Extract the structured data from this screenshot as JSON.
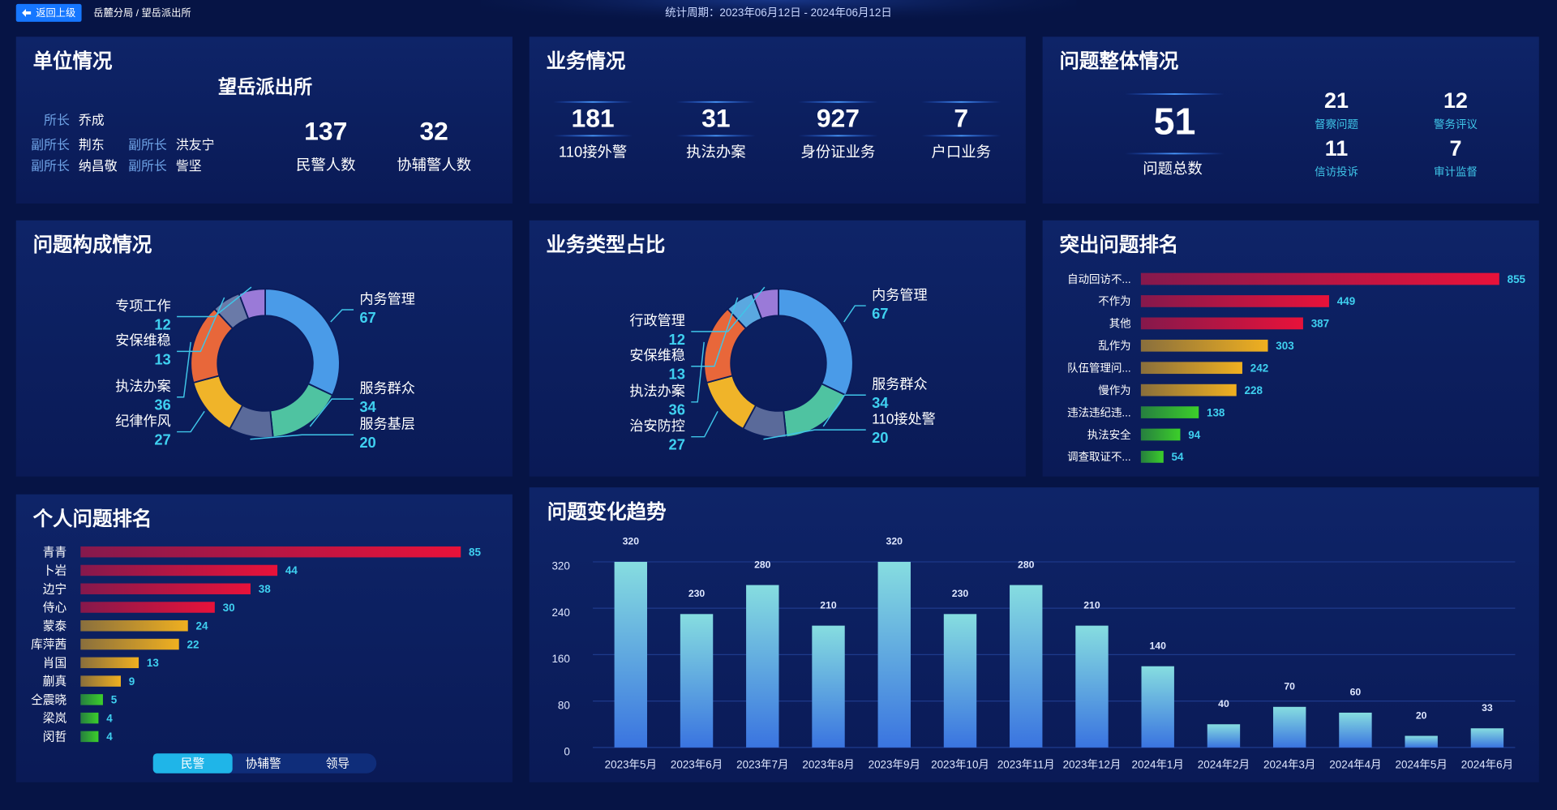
{
  "header": {
    "back_button": "返回上级",
    "breadcrumb": "岳麓分局 / 望岳派出所",
    "period": "统计周期：2023年06月12日 - 2024年06月12日"
  },
  "unit_panel": {
    "title": "单位情况",
    "name": "望岳派出所",
    "staff": [
      {
        "role": "所长",
        "name": "乔成"
      },
      {
        "role": "副所长",
        "name": "荆东"
      },
      {
        "role": "副所长",
        "name": "洪友宁"
      },
      {
        "role": "副所长",
        "name": "纳昌敬"
      },
      {
        "role": "副所长",
        "name": "訾坚"
      }
    ],
    "stats": [
      {
        "value": 137,
        "label": "民警人数"
      },
      {
        "value": 32,
        "label": "协辅警人数"
      }
    ]
  },
  "business_panel": {
    "title": "业务情况",
    "stats": [
      {
        "value": 181,
        "label": "110接外警"
      },
      {
        "value": 31,
        "label": "执法办案"
      },
      {
        "value": 927,
        "label": "身份证业务"
      },
      {
        "value": 7,
        "label": "户口业务"
      }
    ]
  },
  "issues_panel": {
    "title": "问题整体情况",
    "total": {
      "value": 51,
      "label": "问题总数"
    },
    "items": [
      {
        "value": 21,
        "label": "督察问题"
      },
      {
        "value": 12,
        "label": "警务评议"
      },
      {
        "value": 11,
        "label": "信访投诉"
      },
      {
        "value": 7,
        "label": "审计监督"
      }
    ]
  },
  "chart_data": [
    {
      "type": "donut",
      "title": "问题构成情况",
      "categories": [
        "内务管理",
        "服务群众",
        "服务基层",
        "纪律作风",
        "执法办案",
        "安保维稳",
        "专项工作"
      ],
      "values": [
        67,
        34,
        20,
        27,
        36,
        13,
        12
      ],
      "colors": [
        "#4a9be8",
        "#4fc3a1",
        "#5a6a9a",
        "#f0b429",
        "#e8673a",
        "#6a7aa8",
        "#9a7ad8"
      ]
    },
    {
      "type": "donut",
      "title": "业务类型占比",
      "categories": [
        "内务管理",
        "服务群众",
        "110接处警",
        "治安防控",
        "执法办案",
        "安保维稳",
        "行政管理"
      ],
      "values": [
        67,
        34,
        20,
        27,
        36,
        13,
        12
      ],
      "colors": [
        "#4a9be8",
        "#4fc3a1",
        "#5a6a9a",
        "#f0b429",
        "#e8673a",
        "#5aa8e0",
        "#9a7ad8"
      ]
    },
    {
      "type": "hbar",
      "title": "突出问题排名",
      "categories": [
        "自动回访不...",
        "不作为",
        "其他",
        "乱作为",
        "队伍管理问...",
        "慢作为",
        "违法违纪违...",
        "执法安全",
        "调查取证不..."
      ],
      "values": [
        855,
        449,
        387,
        303,
        242,
        228,
        138,
        94,
        54
      ],
      "colors": [
        "#e8123a",
        "#e8123a",
        "#e8123a",
        "#f0b020",
        "#f0b020",
        "#f0b020",
        "#3ccf2a",
        "#3ccf2a",
        "#3ccf2a"
      ]
    },
    {
      "type": "hbar",
      "title": "个人问题排名",
      "categories": [
        "青青",
        "卜岩",
        "边宁",
        "侍心",
        "蒙泰",
        "库萍茜",
        "肖国",
        "蒯真",
        "仝震晓",
        "梁岚",
        "闵哲"
      ],
      "values": [
        85,
        44,
        38,
        30,
        24,
        22,
        13,
        9,
        5,
        4,
        4
      ],
      "colors": [
        "#e8123a",
        "#e8123a",
        "#e8123a",
        "#e8123a",
        "#f0b020",
        "#f0b020",
        "#f0b020",
        "#f0b020",
        "#3ccf2a",
        "#3ccf2a",
        "#3ccf2a"
      ],
      "tabs": [
        "民警",
        "协辅警",
        "领导"
      ]
    },
    {
      "type": "bar",
      "title": "问题变化趋势",
      "categories": [
        "2023年5月",
        "2023年6月",
        "2023年7月",
        "2023年8月",
        "2023年9月",
        "2023年10月",
        "2023年11月",
        "2023年12月",
        "2024年1月",
        "2024年2月",
        "2024年3月",
        "2024年4月",
        "2024年5月",
        "2024年6月"
      ],
      "values": [
        320,
        230,
        280,
        210,
        320,
        230,
        280,
        210,
        140,
        40,
        70,
        60,
        20,
        33
      ],
      "gradient": [
        "#86dde0",
        "#3a74e0"
      ],
      "ylim": [
        0,
        320
      ],
      "yticks": [
        0,
        80,
        160,
        240,
        320
      ],
      "grid": true
    }
  ]
}
